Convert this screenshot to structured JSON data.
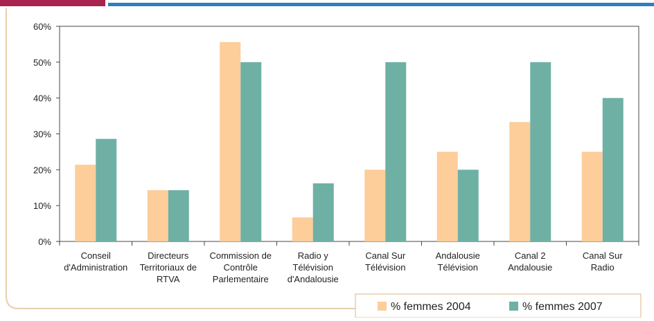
{
  "chart_data": {
    "type": "bar",
    "categories": [
      "Conseil\nd'Administration",
      "Directeurs\nTerritoriaux de\nRTVA",
      "Commission de\nContrôle\nParlementaire",
      "Radio y\nTélévision\nd'Andalousie",
      "Canal Sur\nTélévision",
      "Andalousie\nTélévision",
      "Canal 2\nAndalousie",
      "Canal Sur\nRadio"
    ],
    "series": [
      {
        "name": "% femmes 2004",
        "color": "#fdcd9a",
        "values": [
          21.4,
          14.3,
          55.6,
          6.7,
          20,
          25,
          33.3,
          25
        ]
      },
      {
        "name": "% femmes 2007",
        "color": "#6fb0a5",
        "values": [
          28.6,
          14.3,
          50,
          16.2,
          50,
          20,
          50,
          40
        ]
      }
    ],
    "ylim": [
      0,
      60
    ],
    "yticks": [
      {
        "value": 0,
        "label": "0%"
      },
      {
        "value": 10,
        "label": "10%"
      },
      {
        "value": 20,
        "label": "20%"
      },
      {
        "value": 30,
        "label": "30%"
      },
      {
        "value": 40,
        "label": "40%"
      },
      {
        "value": 50,
        "label": "50%"
      },
      {
        "value": 60,
        "label": "60%"
      }
    ],
    "grid": false,
    "legend": "bottom-right"
  }
}
